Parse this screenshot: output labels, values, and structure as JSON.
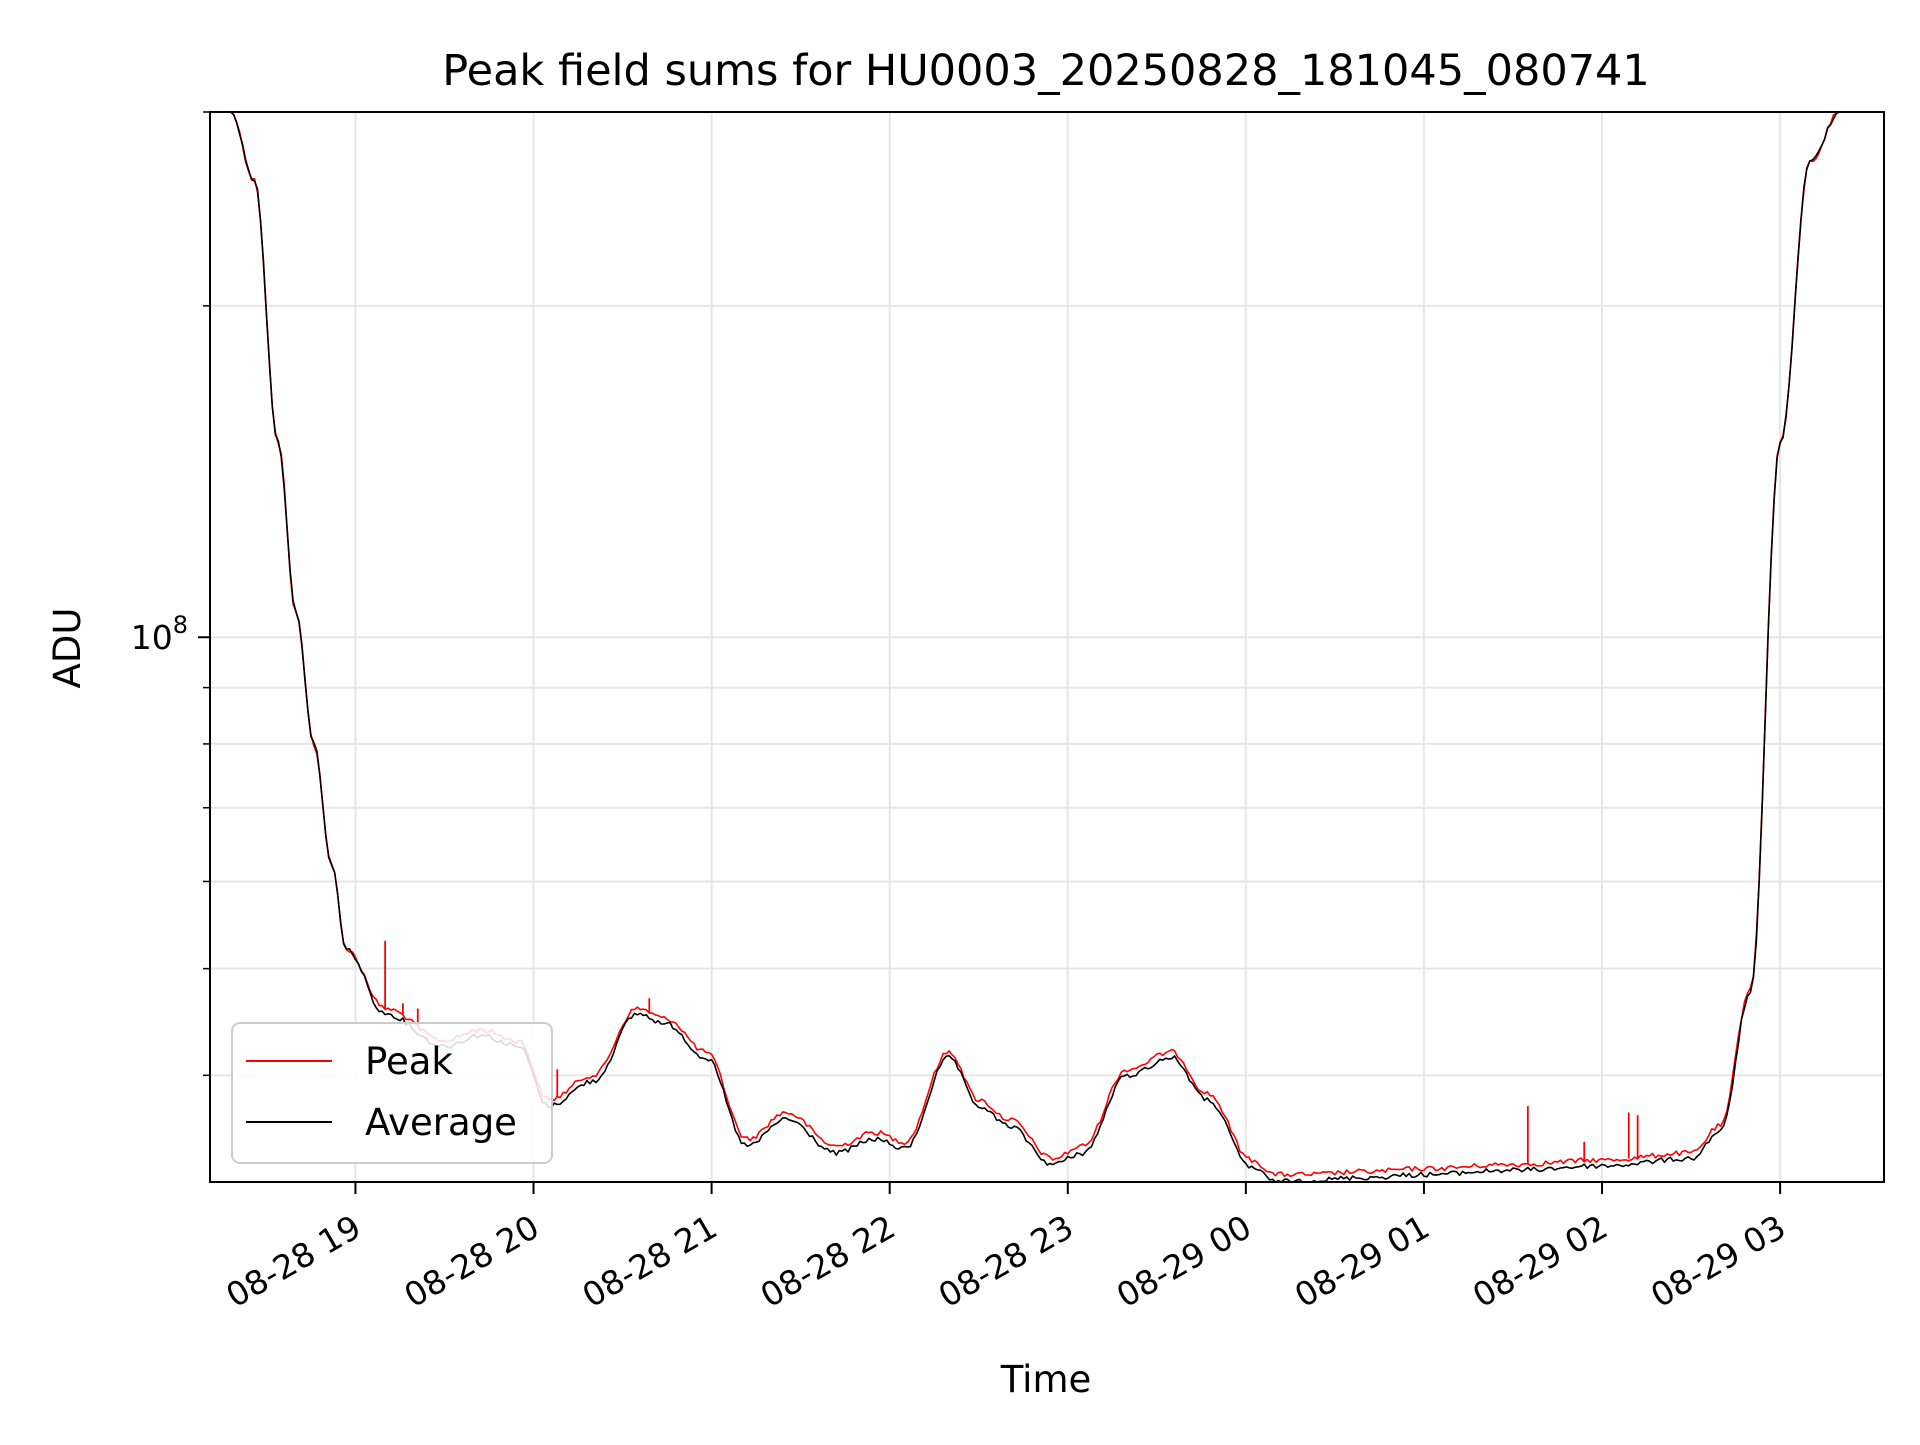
{
  "chart_data": {
    "type": "line",
    "title": "Peak field sums for HU0003_20250828_181045_080741",
    "xlabel": "Time",
    "ylabel": "ADU",
    "yscale": "log",
    "grid": true,
    "legend_placement": "lower-left",
    "xlim": [
      "2025-08-28 18:11",
      "2025-08-29 03:35"
    ],
    "ylim": [
      32000000,
      300000000
    ],
    "x_ticks": [
      "08-28 19",
      "08-28 20",
      "08-28 21",
      "08-28 22",
      "08-28 23",
      "08-29 00",
      "08-29 01",
      "08-29 02",
      "08-29 03"
    ],
    "y_ticks": [
      {
        "base": "10",
        "exponent": "8",
        "value": 100000000
      }
    ],
    "series": [
      {
        "name": "Peak",
        "color": "#ff0000",
        "x": [
          "2025-08-28 18:11",
          "2025-08-28 18:18",
          "2025-08-28 18:26",
          "2025-08-28 18:34",
          "2025-08-28 18:40",
          "2025-08-28 18:46",
          "2025-08-28 18:52",
          "2025-08-28 18:57",
          "2025-08-28 19:10",
          "2025-08-28 19:30",
          "2025-08-28 19:42",
          "2025-08-28 19:55",
          "2025-08-28 20:05",
          "2025-08-28 20:20",
          "2025-08-28 20:35",
          "2025-08-28 20:45",
          "2025-08-28 20:58",
          "2025-08-28 21:12",
          "2025-08-28 21:25",
          "2025-08-28 21:42",
          "2025-08-28 21:55",
          "2025-08-28 22:05",
          "2025-08-28 22:20",
          "2025-08-28 22:30",
          "2025-08-28 22:40",
          "2025-08-28 22:55",
          "2025-08-28 23:05",
          "2025-08-28 23:20",
          "2025-08-28 23:35",
          "2025-08-28 23:47",
          "2025-08-29 00:02",
          "2025-08-29 00:10",
          "2025-08-29 00:20",
          "2025-08-29 00:40",
          "2025-08-29 01:00",
          "2025-08-29 01:30",
          "2025-08-29 02:00",
          "2025-08-29 02:30",
          "2025-08-29 02:40",
          "2025-08-29 02:50",
          "2025-08-29 03:00",
          "2025-08-29 03:10",
          "2025-08-29 03:20",
          "2025-08-29 03:35"
        ],
        "values": [
          300000000,
          300000000,
          260000000,
          150000000,
          105000000,
          80000000,
          62000000,
          52000000,
          46000000,
          43000000,
          44000000,
          43000000,
          38000000,
          40000000,
          46000000,
          45000000,
          42000000,
          35000000,
          37000000,
          34500000,
          35500000,
          34800000,
          42000000,
          38000000,
          36500000,
          33600000,
          34500000,
          40500000,
          42000000,
          38500000,
          33500000,
          32500000,
          32500000,
          32700000,
          32900000,
          33200000,
          33500000,
          34000000,
          36000000,
          48000000,
          150000000,
          270000000,
          300000000,
          300000000
        ]
      },
      {
        "name": "Average",
        "color": "#000000",
        "x": [
          "2025-08-28 18:11",
          "2025-08-28 18:18",
          "2025-08-28 18:26",
          "2025-08-28 18:34",
          "2025-08-28 18:40",
          "2025-08-28 18:46",
          "2025-08-28 18:52",
          "2025-08-28 18:57",
          "2025-08-28 19:10",
          "2025-08-28 19:30",
          "2025-08-28 19:42",
          "2025-08-28 19:55",
          "2025-08-28 20:05",
          "2025-08-28 20:20",
          "2025-08-28 20:35",
          "2025-08-28 20:45",
          "2025-08-28 20:58",
          "2025-08-28 21:12",
          "2025-08-28 21:25",
          "2025-08-28 21:42",
          "2025-08-28 21:55",
          "2025-08-28 22:05",
          "2025-08-28 22:20",
          "2025-08-28 22:30",
          "2025-08-28 22:40",
          "2025-08-28 22:55",
          "2025-08-28 23:05",
          "2025-08-28 23:20",
          "2025-08-28 23:35",
          "2025-08-28 23:47",
          "2025-08-29 00:02",
          "2025-08-29 00:10",
          "2025-08-29 00:20",
          "2025-08-29 00:40",
          "2025-08-29 01:00",
          "2025-08-29 01:30",
          "2025-08-29 02:00",
          "2025-08-29 02:30",
          "2025-08-29 02:40",
          "2025-08-29 02:50",
          "2025-08-29 03:00",
          "2025-08-29 03:10",
          "2025-08-29 03:20",
          "2025-08-29 03:35"
        ],
        "values": [
          300000000,
          300000000,
          260000000,
          150000000,
          105000000,
          80000000,
          62000000,
          52000000,
          45500000,
          42500000,
          43500000,
          42500000,
          37500000,
          39500000,
          45500000,
          44500000,
          41500000,
          34500000,
          36500000,
          34000000,
          35000000,
          34300000,
          41500000,
          37500000,
          36000000,
          33200000,
          34000000,
          40000000,
          41500000,
          38000000,
          33000000,
          32000000,
          32100000,
          32300000,
          32500000,
          32800000,
          33100000,
          33600000,
          35600000,
          47500000,
          150000000,
          270000000,
          300000000,
          300000000
        ]
      }
    ],
    "spikes": [
      {
        "x": "2025-08-28 19:10",
        "y": 53000000
      },
      {
        "x": "2025-08-28 19:16",
        "y": 46500000
      },
      {
        "x": "2025-08-28 19:21",
        "y": 46000000
      },
      {
        "x": "2025-08-28 20:08",
        "y": 40500000
      },
      {
        "x": "2025-08-28 20:24",
        "y": 41000000
      },
      {
        "x": "2025-08-28 20:39",
        "y": 47000000
      },
      {
        "x": "2025-08-29 01:35",
        "y": 37500000
      },
      {
        "x": "2025-08-29 01:54",
        "y": 34800000
      },
      {
        "x": "2025-08-29 02:09",
        "y": 37000000
      },
      {
        "x": "2025-08-29 02:12",
        "y": 36800000
      }
    ]
  }
}
